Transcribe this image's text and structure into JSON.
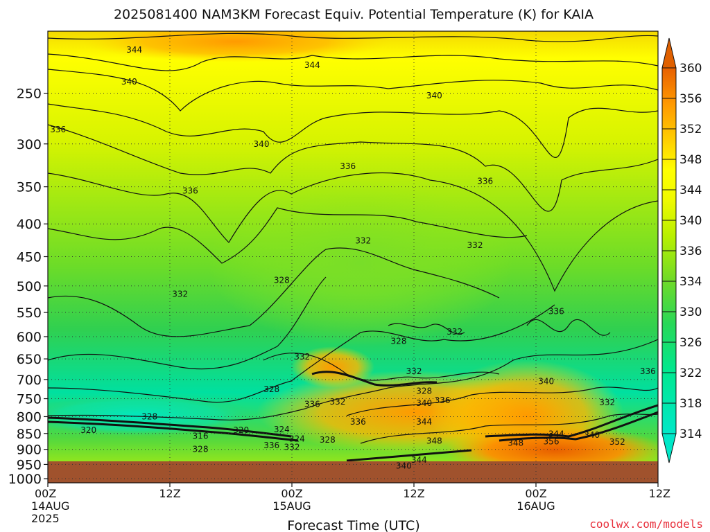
{
  "chart_data": {
    "type": "heatmap",
    "title": "2025081400 NAM3KM Forecast Equiv. Potential Temperature (K) for KAIA",
    "xlabel": "Forecast Time (UTC)",
    "ylabel": "",
    "x_ticks": [
      {
        "hour": 0,
        "label": "00Z",
        "sub": [
          "14AUG",
          "2025"
        ]
      },
      {
        "hour": 12,
        "label": "12Z",
        "sub": []
      },
      {
        "hour": 24,
        "label": "00Z",
        "sub": [
          "15AUG"
        ]
      },
      {
        "hour": 36,
        "label": "12Z",
        "sub": []
      },
      {
        "hour": 48,
        "label": "00Z",
        "sub": [
          "16AUG"
        ]
      },
      {
        "hour": 60,
        "label": "12Z",
        "sub": []
      }
    ],
    "xlim": [
      0,
      60
    ],
    "y_ticks": [
      250,
      300,
      350,
      400,
      450,
      500,
      550,
      600,
      650,
      700,
      750,
      800,
      850,
      900,
      950,
      1000
    ],
    "ylim": [
      200,
      1015
    ],
    "y_scale": "log-pressure",
    "surface_pressure": 965,
    "colorbar": {
      "min": 314,
      "max": 360,
      "ticks": [
        314,
        318,
        322,
        326,
        330,
        334,
        336,
        340,
        344,
        348,
        352,
        356,
        360
      ],
      "colors": [
        "#00e0b8",
        "#00eaa0",
        "#10e070",
        "#30d050",
        "#60d830",
        "#90e818",
        "#c0f000",
        "#e8f800",
        "#ffff00",
        "#ffd800",
        "#ffb000",
        "#ff8c00",
        "#e06000"
      ]
    },
    "contour_labels": [
      {
        "t": 8.5,
        "p": 214,
        "text": "344"
      },
      {
        "t": 26,
        "p": 226,
        "text": "344"
      },
      {
        "t": 8,
        "p": 240,
        "text": "340"
      },
      {
        "t": 38,
        "p": 252,
        "text": "340"
      },
      {
        "t": 1,
        "p": 285,
        "text": "336"
      },
      {
        "t": 21,
        "p": 300,
        "text": "340"
      },
      {
        "t": 29.5,
        "p": 325,
        "text": "336"
      },
      {
        "t": 43,
        "p": 343,
        "text": "336"
      },
      {
        "t": 14,
        "p": 355,
        "text": "336"
      },
      {
        "t": 31,
        "p": 425,
        "text": "332"
      },
      {
        "t": 42,
        "p": 432,
        "text": "332"
      },
      {
        "t": 23,
        "p": 490,
        "text": "328"
      },
      {
        "t": 13,
        "p": 515,
        "text": "332"
      },
      {
        "t": 50,
        "p": 548,
        "text": "336"
      },
      {
        "t": 40,
        "p": 590,
        "text": "332"
      },
      {
        "t": 34.5,
        "p": 610,
        "text": "328"
      },
      {
        "t": 25,
        "p": 645,
        "text": "332"
      },
      {
        "t": 36,
        "p": 680,
        "text": "332"
      },
      {
        "t": 49,
        "p": 705,
        "text": "340"
      },
      {
        "t": 59,
        "p": 680,
        "text": "336"
      },
      {
        "t": 22,
        "p": 725,
        "text": "328"
      },
      {
        "t": 37,
        "p": 730,
        "text": "328"
      },
      {
        "t": 37,
        "p": 762,
        "text": "340"
      },
      {
        "t": 38.8,
        "p": 755,
        "text": "336"
      },
      {
        "t": 26,
        "p": 765,
        "text": "336"
      },
      {
        "t": 28.5,
        "p": 758,
        "text": "332"
      },
      {
        "t": 55,
        "p": 760,
        "text": "332"
      },
      {
        "t": 10,
        "p": 800,
        "text": "328"
      },
      {
        "t": 30.5,
        "p": 815,
        "text": "336"
      },
      {
        "t": 37,
        "p": 815,
        "text": "344"
      },
      {
        "t": 4,
        "p": 840,
        "text": "320"
      },
      {
        "t": 19,
        "p": 840,
        "text": "320"
      },
      {
        "t": 23,
        "p": 838,
        "text": "324"
      },
      {
        "t": 50,
        "p": 852,
        "text": "344"
      },
      {
        "t": 53.5,
        "p": 855,
        "text": "340"
      },
      {
        "t": 15,
        "p": 858,
        "text": "316"
      },
      {
        "t": 24.5,
        "p": 866,
        "text": "324"
      },
      {
        "t": 27.5,
        "p": 870,
        "text": "328"
      },
      {
        "t": 38,
        "p": 873,
        "text": "348"
      },
      {
        "t": 46,
        "p": 880,
        "text": "348"
      },
      {
        "t": 49.5,
        "p": 875,
        "text": "356"
      },
      {
        "t": 56,
        "p": 876,
        "text": "352"
      },
      {
        "t": 22,
        "p": 887,
        "text": "336"
      },
      {
        "t": 24,
        "p": 893,
        "text": "332"
      },
      {
        "t": 15,
        "p": 900,
        "text": "328"
      },
      {
        "t": 36.5,
        "p": 935,
        "text": "344"
      },
      {
        "t": 35,
        "p": 955,
        "text": "340"
      }
    ],
    "credit": "coolwx.com/models"
  }
}
